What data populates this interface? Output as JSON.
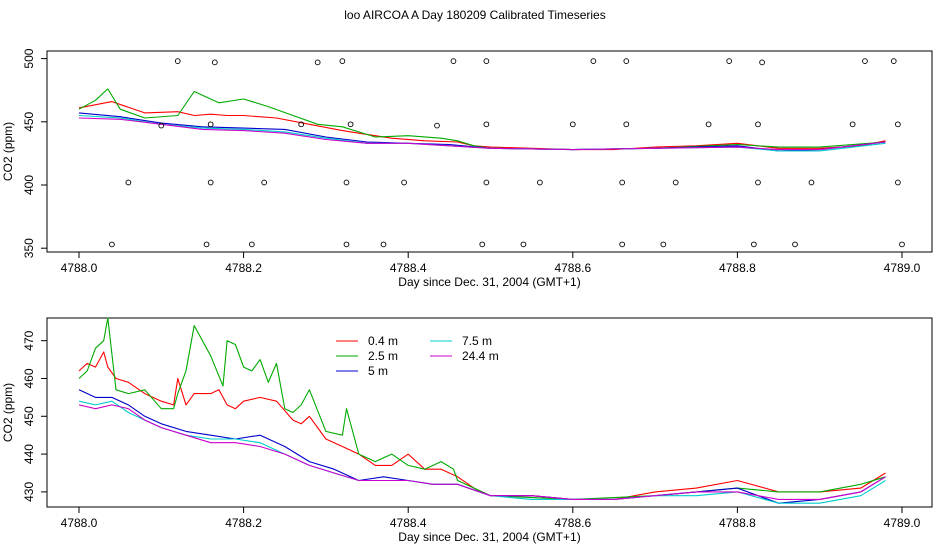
{
  "title": "loo AIRCOA A  Day 180209  Calibrated Timeseries",
  "chart_data": [
    {
      "type": "line",
      "ylabel": "CO2 (ppm)",
      "xlabel": "Day since Dec. 31, 2004 (GMT+1)",
      "xlim": [
        4788.0,
        4789.0
      ],
      "ylim": [
        347,
        506
      ],
      "x_ticks": [
        4788.0,
        4788.2,
        4788.4,
        4788.6,
        4788.8,
        4789.0
      ],
      "x_tick_labels": [
        "4788.0",
        "4788.2",
        "4788.4",
        "4788.6",
        "4788.8",
        "4789.0"
      ],
      "y_ticks": [
        350,
        400,
        450,
        500
      ],
      "y_tick_labels": [
        "350",
        "400",
        "450",
        "500"
      ],
      "legend": "none",
      "series": [
        {
          "color": "#ff0000",
          "x": [
            4788.0,
            4788.04,
            4788.08,
            4788.12,
            4788.14,
            4788.16,
            4788.18,
            4788.2,
            4788.24,
            4788.28,
            4788.32,
            4788.34,
            4788.38,
            4788.42,
            4788.46,
            4788.48,
            4788.5,
            4788.55,
            4788.6,
            4788.65,
            4788.7,
            4788.75,
            4788.8,
            4788.85,
            4788.9,
            4788.95,
            4788.98
          ],
          "y": [
            461,
            466,
            457,
            458,
            455,
            456,
            455,
            455,
            453,
            448,
            443,
            441,
            437,
            435,
            434,
            431,
            430,
            429,
            428,
            428,
            430,
            431,
            433,
            429,
            429,
            431,
            435
          ]
        },
        {
          "color": "#00aa00",
          "x": [
            4788.0,
            4788.02,
            4788.035,
            4788.05,
            4788.08,
            4788.12,
            4788.14,
            4788.17,
            4788.2,
            4788.23,
            4788.26,
            4788.29,
            4788.32,
            4788.36,
            4788.4,
            4788.44,
            4788.46,
            4788.48,
            4788.5,
            4788.6,
            4788.7,
            4788.8,
            4788.85,
            4788.9,
            4788.98
          ],
          "y": [
            460,
            467,
            476,
            460,
            453,
            455,
            474,
            465,
            468,
            462,
            455,
            448,
            446,
            438,
            439,
            437,
            435,
            431,
            429,
            428,
            429,
            432,
            430,
            430,
            434
          ]
        },
        {
          "color": "#0000cc",
          "x": [
            4788.0,
            4788.05,
            4788.1,
            4788.15,
            4788.2,
            4788.25,
            4788.3,
            4788.35,
            4788.4,
            4788.45,
            4788.5,
            4788.6,
            4788.7,
            4788.8,
            4788.85,
            4788.9,
            4788.98
          ],
          "y": [
            457,
            454,
            449,
            446,
            445,
            444,
            438,
            434,
            433,
            432,
            429,
            428,
            429,
            431,
            427,
            428,
            434
          ]
        },
        {
          "color": "#00cccc",
          "x": [
            4788.0,
            4788.05,
            4788.1,
            4788.15,
            4788.2,
            4788.25,
            4788.3,
            4788.35,
            4788.4,
            4788.45,
            4788.5,
            4788.6,
            4788.7,
            4788.8,
            4788.85,
            4788.9,
            4788.98
          ],
          "y": [
            455,
            453,
            448,
            445,
            444,
            442,
            437,
            433,
            433,
            431,
            429,
            428,
            429,
            430,
            427,
            427,
            433
          ]
        },
        {
          "color": "#cc00cc",
          "x": [
            4788.0,
            4788.05,
            4788.1,
            4788.15,
            4788.2,
            4788.25,
            4788.3,
            4788.35,
            4788.4,
            4788.45,
            4788.5,
            4788.6,
            4788.7,
            4788.8,
            4788.85,
            4788.9,
            4788.98
          ],
          "y": [
            453,
            452,
            448,
            444,
            443,
            441,
            436,
            433,
            433,
            431,
            429,
            428,
            429,
            430,
            428,
            428,
            434
          ]
        }
      ],
      "flag_points": {
        "x": [
          4788.04,
          4788.06,
          4788.1,
          4788.12,
          4788.155,
          4788.16,
          4788.16,
          4788.165,
          4788.21,
          4788.225,
          4788.27,
          4788.29,
          4788.32,
          4788.325,
          4788.325,
          4788.33,
          4788.37,
          4788.395,
          4788.435,
          4788.455,
          4788.49,
          4788.495,
          4788.495,
          4788.495,
          4788.54,
          4788.56,
          4788.6,
          4788.625,
          4788.66,
          4788.66,
          4788.665,
          4788.665,
          4788.71,
          4788.725,
          4788.765,
          4788.79,
          4788.82,
          4788.825,
          4788.825,
          4788.83,
          4788.87,
          4788.89,
          4788.94,
          4788.955,
          4788.99,
          4788.995,
          4788.995,
          4789.0
        ],
        "y": [
          353,
          402,
          447,
          498,
          353,
          402,
          448,
          497,
          353,
          402,
          448,
          497,
          498,
          353,
          402,
          448,
          353,
          402,
          447,
          498,
          353,
          402,
          448,
          498,
          353,
          402,
          448,
          498,
          353,
          402,
          448,
          498,
          353,
          402,
          448,
          498,
          353,
          402,
          448,
          497,
          353,
          402,
          448,
          498,
          498,
          448,
          402,
          353
        ]
      }
    },
    {
      "type": "line",
      "ylabel": "CO2 (ppm)",
      "xlabel": "Day since Dec. 31, 2004 (GMT+1)",
      "xlim": [
        4788.0,
        4789.0
      ],
      "ylim": [
        426,
        476
      ],
      "x_ticks": [
        4788.0,
        4788.2,
        4788.4,
        4788.6,
        4788.8,
        4789.0
      ],
      "x_tick_labels": [
        "4788.0",
        "4788.2",
        "4788.4",
        "4788.6",
        "4788.8",
        "4789.0"
      ],
      "y_ticks": [
        430,
        440,
        450,
        460,
        470
      ],
      "y_tick_labels": [
        "430",
        "440",
        "450",
        "460",
        "470"
      ],
      "legend": "top-left",
      "series": [
        {
          "name": "0.4 m",
          "color": "#ff0000",
          "x": [
            4788.0,
            4788.01,
            4788.02,
            4788.03,
            4788.035,
            4788.045,
            4788.06,
            4788.08,
            4788.1,
            4788.115,
            4788.12,
            4788.13,
            4788.14,
            4788.16,
            4788.17,
            4788.18,
            4788.19,
            4788.2,
            4788.22,
            4788.24,
            4788.26,
            4788.27,
            4788.28,
            4788.3,
            4788.32,
            4788.34,
            4788.36,
            4788.38,
            4788.4,
            4788.42,
            4788.44,
            4788.46,
            4788.48,
            4788.5,
            4788.55,
            4788.6,
            4788.65,
            4788.7,
            4788.75,
            4788.8,
            4788.85,
            4788.9,
            4788.95,
            4788.98
          ],
          "y": [
            462,
            464,
            463,
            467,
            463,
            460,
            459,
            456,
            454,
            453,
            460,
            453,
            456,
            456,
            457,
            453,
            452,
            454,
            455,
            454,
            449,
            448,
            450,
            444,
            442,
            440,
            437,
            437,
            440,
            436,
            436,
            434,
            431,
            429,
            429,
            428,
            428,
            430,
            431,
            433,
            430,
            430,
            431,
            435
          ]
        },
        {
          "name": "2.5 m",
          "color": "#00aa00",
          "x": [
            4788.0,
            4788.01,
            4788.02,
            4788.03,
            4788.035,
            4788.045,
            4788.06,
            4788.08,
            4788.1,
            4788.115,
            4788.12,
            4788.13,
            4788.14,
            4788.16,
            4788.175,
            4788.18,
            4788.19,
            4788.2,
            4788.21,
            4788.22,
            4788.23,
            4788.24,
            4788.25,
            4788.26,
            4788.27,
            4788.28,
            4788.3,
            4788.32,
            4788.325,
            4788.34,
            4788.36,
            4788.38,
            4788.4,
            4788.42,
            4788.44,
            4788.455,
            4788.46,
            4788.48,
            4788.5,
            4788.6,
            4788.7,
            4788.75,
            4788.8,
            4788.85,
            4788.9,
            4788.95,
            4788.98
          ],
          "y": [
            460,
            462,
            468,
            470,
            476,
            457,
            456,
            457,
            452,
            452,
            456,
            462,
            474,
            466,
            458,
            470,
            469,
            463,
            462,
            465,
            459,
            464,
            452,
            451,
            453,
            457,
            446,
            445,
            452,
            440,
            438,
            440,
            437,
            436,
            438,
            436,
            433,
            431,
            429,
            428,
            429,
            430,
            431,
            430,
            430,
            432,
            434
          ]
        },
        {
          "name": "5 m",
          "color": "#0000cc",
          "x": [
            4788.0,
            4788.02,
            4788.04,
            4788.06,
            4788.08,
            4788.1,
            4788.13,
            4788.16,
            4788.19,
            4788.22,
            4788.25,
            4788.28,
            4788.31,
            4788.34,
            4788.37,
            4788.4,
            4788.43,
            4788.46,
            4788.5,
            4788.55,
            4788.6,
            4788.65,
            4788.7,
            4788.75,
            4788.8,
            4788.85,
            4788.9,
            4788.95,
            4788.98
          ],
          "y": [
            457,
            455,
            455,
            453,
            450,
            448,
            446,
            445,
            444,
            445,
            442,
            438,
            436,
            433,
            434,
            433,
            432,
            432,
            429,
            429,
            428,
            428,
            429,
            430,
            431,
            427,
            428,
            430,
            434
          ]
        },
        {
          "name": "7.5 m",
          "color": "#00cccc",
          "x": [
            4788.0,
            4788.02,
            4788.04,
            4788.06,
            4788.08,
            4788.1,
            4788.13,
            4788.16,
            4788.19,
            4788.22,
            4788.25,
            4788.28,
            4788.31,
            4788.34,
            4788.37,
            4788.4,
            4788.43,
            4788.46,
            4788.5,
            4788.55,
            4788.6,
            4788.65,
            4788.7,
            4788.75,
            4788.8,
            4788.85,
            4788.9,
            4788.95,
            4788.98
          ],
          "y": [
            454,
            453,
            454,
            451,
            449,
            447,
            445,
            444,
            444,
            443,
            440,
            437,
            435,
            433,
            433,
            433,
            432,
            432,
            429,
            428,
            428,
            428,
            429,
            429,
            430,
            427,
            427,
            429,
            433
          ]
        },
        {
          "name": "24.4 m",
          "color": "#cc00cc",
          "x": [
            4788.0,
            4788.02,
            4788.04,
            4788.06,
            4788.08,
            4788.1,
            4788.13,
            4788.16,
            4788.19,
            4788.22,
            4788.25,
            4788.28,
            4788.31,
            4788.34,
            4788.37,
            4788.4,
            4788.43,
            4788.46,
            4788.5,
            4788.55,
            4788.6,
            4788.65,
            4788.7,
            4788.75,
            4788.8,
            4788.85,
            4788.9,
            4788.95,
            4788.98
          ],
          "y": [
            453,
            452,
            453,
            452,
            449,
            447,
            445,
            443,
            443,
            442,
            440,
            437,
            435,
            433,
            433,
            433,
            432,
            432,
            429,
            429,
            428,
            428,
            429,
            430,
            430,
            428,
            428,
            430,
            434
          ]
        }
      ]
    }
  ]
}
